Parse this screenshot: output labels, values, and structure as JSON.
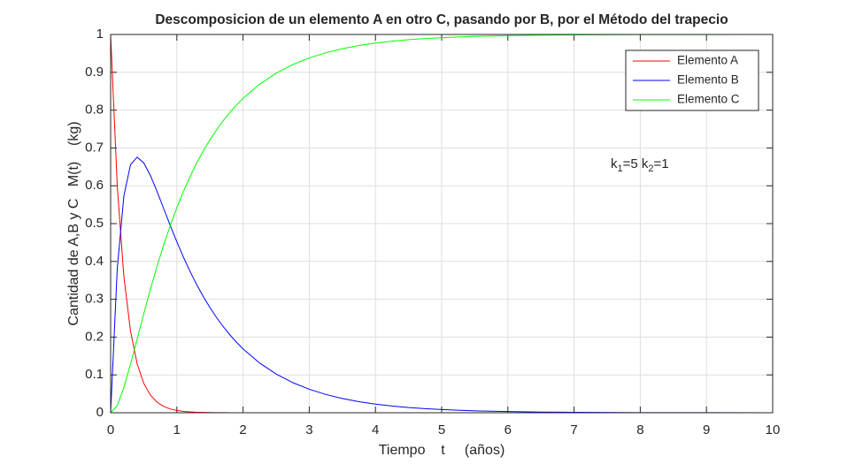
{
  "chart_data": {
    "type": "line",
    "title": "Descomposicion de un elemento A en otro C, pasando por B, por el Método del trapecio",
    "xlabel": "Tiempo    t     (años)",
    "ylabel": "Cantidad de A,B y C   M(t)    (kg)",
    "annotation": [
      "k",
      "1",
      "=5 k",
      "2",
      "=1"
    ],
    "x": [
      0,
      0.1,
      0.2,
      0.3,
      0.4,
      0.5,
      0.6,
      0.7,
      0.8,
      0.9,
      1.0,
      1.1,
      1.2,
      1.3,
      1.4,
      1.5,
      1.6,
      1.7,
      1.8,
      1.9,
      2.0,
      2.25,
      2.5,
      2.75,
      3,
      3.25,
      3.5,
      3.75,
      4,
      4.25,
      4.5,
      4.75,
      5,
      5.5,
      6,
      6.5,
      7,
      8,
      9,
      10
    ],
    "series": [
      {
        "name": "Elemento A",
        "color": "#ff0000",
        "values": [
          1,
          0.6,
          0.36,
          0.216,
          0.1296,
          0.0778,
          0.0467,
          0.028,
          0.0168,
          0.0101,
          0.006,
          0.0036,
          0.0022,
          0.0013,
          0.0008,
          0.0005,
          0.0003,
          0.0002,
          0.0001,
          0.0001,
          0,
          0,
          0,
          0,
          0,
          0,
          0,
          0,
          0,
          0,
          0,
          0,
          0,
          0,
          0,
          0,
          0,
          0,
          0,
          0
        ]
      },
      {
        "name": "Elemento B",
        "color": "#0000ff",
        "values": [
          0,
          0.381,
          0.5732,
          0.6558,
          0.6756,
          0.6607,
          0.6274,
          0.5854,
          0.5403,
          0.4952,
          0.4519,
          0.4112,
          0.3734,
          0.3387,
          0.3069,
          0.278,
          0.2517,
          0.2278,
          0.2062,
          0.1866,
          0.1689,
          0.1315,
          0.1024,
          0.0797,
          0.0621,
          0.0483,
          0.0376,
          0.0293,
          0.0228,
          0.0178,
          0.0138,
          0.0108,
          0.0084,
          0.0051,
          0.0031,
          0.0019,
          0.0011,
          0.0004,
          0.0002,
          0.0001
        ]
      },
      {
        "name": "Elemento C",
        "color": "#00ff00",
        "values": [
          0,
          0.019,
          0.0668,
          0.1282,
          0.1948,
          0.2615,
          0.3259,
          0.3866,
          0.4429,
          0.4947,
          0.5421,
          0.5852,
          0.6244,
          0.66,
          0.6923,
          0.7215,
          0.748,
          0.772,
          0.7937,
          0.8133,
          0.8311,
          0.8685,
          0.8976,
          0.9203,
          0.9379,
          0.9517,
          0.9624,
          0.9707,
          0.9772,
          0.9822,
          0.9862,
          0.9892,
          0.9916,
          0.9949,
          0.9969,
          0.9981,
          0.9989,
          0.9996,
          0.9998,
          0.9999
        ]
      }
    ],
    "xlim": [
      0,
      10
    ],
    "xticks": [
      0,
      1,
      2,
      3,
      4,
      5,
      6,
      7,
      8,
      9,
      10
    ],
    "ylim": [
      0,
      1
    ],
    "yticks": [
      0,
      0.1,
      0.2,
      0.3,
      0.4,
      0.5,
      0.6,
      0.7,
      0.8,
      0.9,
      1
    ],
    "grid": true,
    "legend": "northeast"
  }
}
